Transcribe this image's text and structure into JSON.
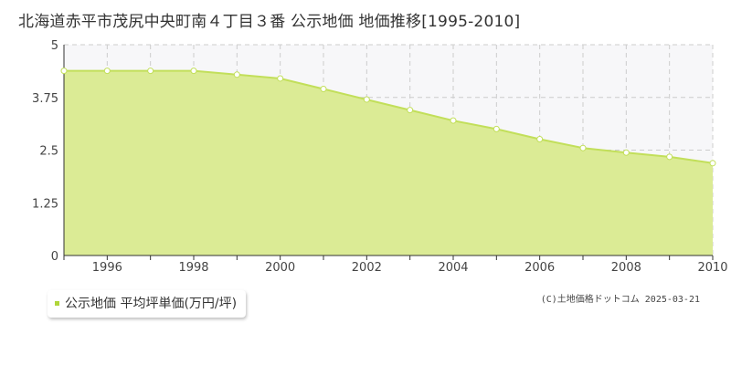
{
  "title": "北海道赤平市茂尻中央町南４丁目３番 公示地価 地価推移[1995-2010]",
  "legend": {
    "label": "公示地価 平均坪単価(万円/坪)"
  },
  "copyright": "(C)土地価格ドットコム 2025-03-21",
  "colors": {
    "fill": "#dbeb95",
    "line": "#c2df5a",
    "marker_fill": "#ffffff",
    "grid": "#cccccc",
    "plot_bg": "#f7f7f9",
    "axis": "#333333",
    "legend_swatch": "#b0d63a"
  },
  "chart_data": {
    "type": "area",
    "x": [
      1995,
      1996,
      1997,
      1998,
      1999,
      2000,
      2001,
      2002,
      2003,
      2004,
      2005,
      2006,
      2007,
      2008,
      2009,
      2010
    ],
    "series": [
      {
        "name": "公示地価 平均坪単価(万円/坪)",
        "values": [
          4.38,
          4.38,
          4.38,
          4.38,
          4.29,
          4.2,
          3.95,
          3.7,
          3.45,
          3.2,
          3.0,
          2.76,
          2.55,
          2.44,
          2.34,
          2.19
        ]
      }
    ],
    "xlim": [
      1995,
      2010
    ],
    "ylim": [
      0,
      5
    ],
    "x_ticks": [
      "1996",
      "1998",
      "2000",
      "2002",
      "2004",
      "2006",
      "2008",
      "2010"
    ],
    "y_ticks": [
      "0",
      "1.25",
      "2.5",
      "3.75",
      "5"
    ],
    "grid": true
  }
}
